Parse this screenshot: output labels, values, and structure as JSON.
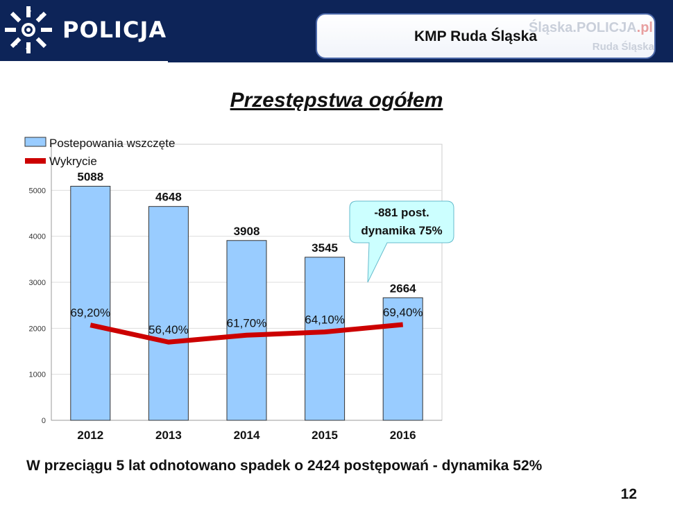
{
  "header": {
    "brand": "POLICJA",
    "unit_name": "KMP Ruda Śląska",
    "site_name": "Śląska.POLICJA",
    "site_tld": ".pl",
    "site_city": "Ruda Śląska",
    "background_color": "#0d2458"
  },
  "slide": {
    "title": "Przestępstwa ogółem",
    "footer": "W przeciągu 5 lat odnotowano spadek o 2424 postępowań - dynamika 52%",
    "page_number": "12"
  },
  "chart_data": {
    "type": "bar",
    "categories": [
      "2012",
      "2013",
      "2014",
      "2015",
      "2016"
    ],
    "series": [
      {
        "name": "Postepowania wszczęte",
        "type": "bar",
        "values": [
          5088,
          4648,
          3908,
          3545,
          2664
        ],
        "labels": [
          "5088",
          "4648",
          "3908",
          "3545",
          "2664"
        ],
        "color": "#99ccff"
      },
      {
        "name": "Wykrycie",
        "type": "line",
        "values": [
          2070,
          1700,
          1850,
          1920,
          2080
        ],
        "labels": [
          "69,20%",
          "56,40%",
          "61,70%",
          "64,10%",
          "69,40%"
        ],
        "color": "#cc0000"
      }
    ],
    "yticks": [
      "0",
      "1000",
      "2000",
      "3000",
      "4000",
      "5000"
    ],
    "ylim": [
      0,
      6000
    ],
    "grid": true,
    "legend": "top-left",
    "annotation": {
      "lines": [
        "-881 post.",
        "dynamika 75%"
      ],
      "color": "#ccffff",
      "category": "2016"
    }
  }
}
